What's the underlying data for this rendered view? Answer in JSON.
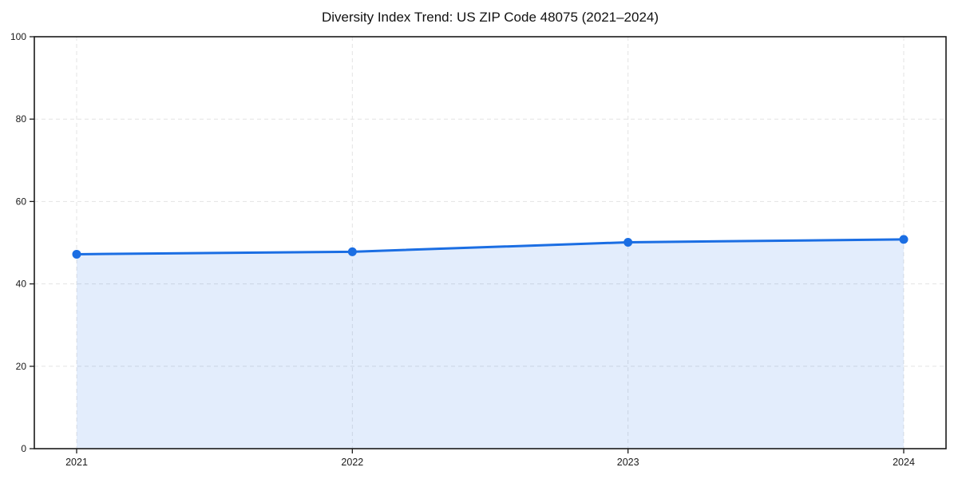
{
  "page": {
    "title": "Diversity Index Trend: US ZIP Code 48075 (2021–2024)"
  },
  "chart_data": {
    "type": "area",
    "title": "Diversity Index Trend: US ZIP Code 48075 (2021–2024)",
    "x": [
      "2021",
      "2022",
      "2023",
      "2024"
    ],
    "values": [
      47.2,
      47.8,
      50.1,
      50.8
    ],
    "xlabel": "",
    "ylabel": "",
    "ylim": [
      0,
      100
    ],
    "yticks": [
      0,
      20,
      40,
      60,
      80,
      100
    ],
    "grid": true,
    "grid_style": "dashed",
    "legend": "none",
    "marker": "circle",
    "fill_opacity": 0.12,
    "colors": {
      "line": "#1b6ee3",
      "marker": "#1b6ee3",
      "fill_base": "#1b6ee3",
      "grid": "#e3e3e3",
      "axis": "#1a1a1a",
      "text": "#1a1a1a",
      "background": "#ffffff"
    }
  }
}
